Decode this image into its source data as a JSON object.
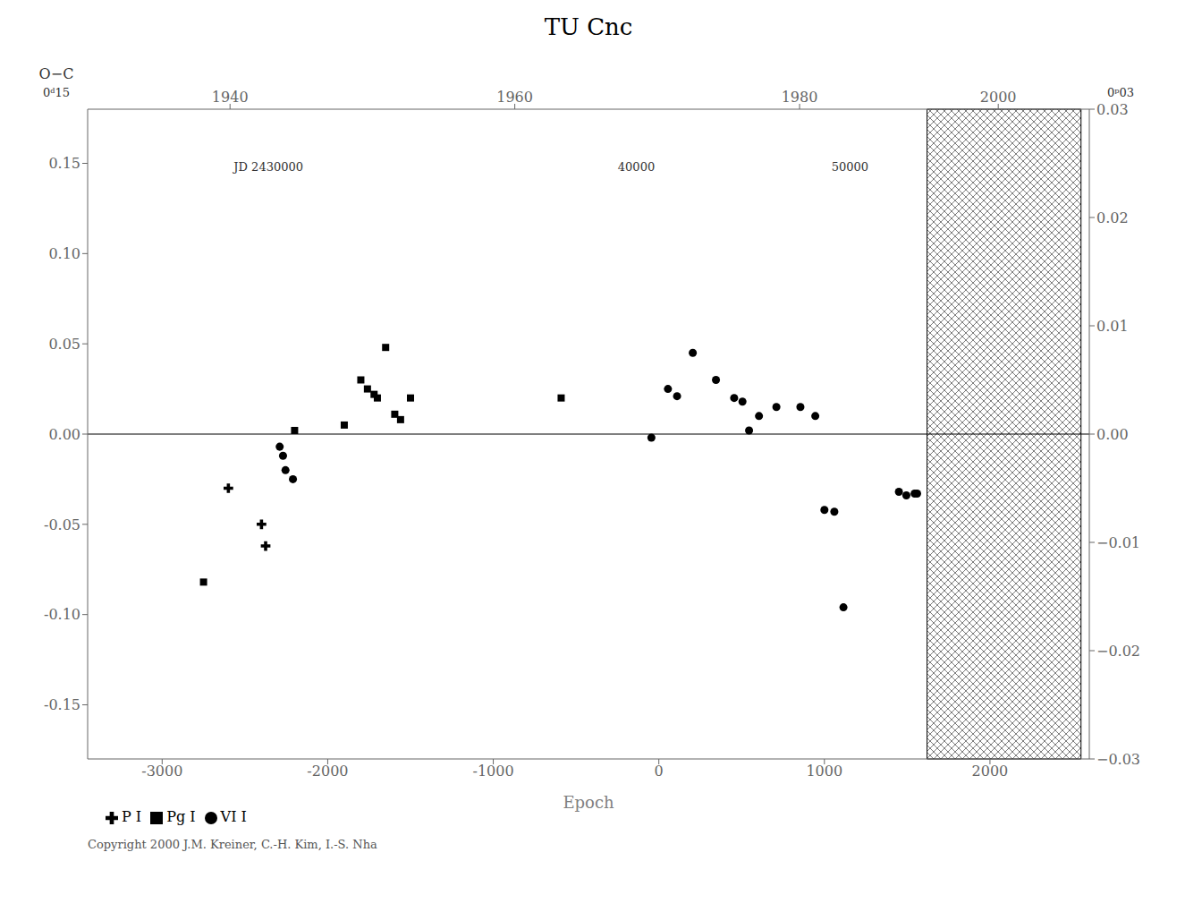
{
  "chart_data": {
    "type": "scatter",
    "title": "TU  Cnc",
    "x_label": "Epoch",
    "y_label": "O−C",
    "y_unit": "0ᵈ15",
    "y2_unit": "0ᵖ03",
    "caption": "Copyright 2000 J.M. Kreiner, C.-H. Kim, I.-S. Nha",
    "xlim": [
      -3450,
      2600
    ],
    "xticks": [
      -3000,
      -2000,
      -1000,
      0,
      1000,
      2000
    ],
    "x2lim": [
      -3450,
      2600
    ],
    "x2ticks": [
      {
        "value": -2590,
        "label": "1940"
      },
      {
        "value": -870,
        "label": "1960"
      },
      {
        "value": 850,
        "label": "1980"
      },
      {
        "value": 2050,
        "label": "2000"
      }
    ],
    "ylim": [
      -0.18,
      0.18
    ],
    "yticks": [
      -0.15,
      {
        "value": -0.1,
        "label": "-0.10"
      },
      -0.05,
      {
        "value": 0,
        "label": "0.00"
      },
      0.05,
      {
        "value": 0.1,
        "label": "0.10"
      },
      0.15
    ],
    "y2lim": [
      -0.03,
      0.03
    ],
    "y2ticks": [
      {
        "value": -0.03,
        "label": "−0.03"
      },
      {
        "value": -0.02,
        "label": "−0.02"
      },
      {
        "value": -0.01,
        "label": "−0.01"
      },
      {
        "value": 0,
        "label": "0.00"
      },
      0.01,
      0.02,
      0.03
    ],
    "grid": false,
    "legend": "lower left",
    "shaded_region": {
      "x": [
        1620,
        2550
      ],
      "y": [
        -0.18,
        0.18
      ]
    },
    "hlines": [
      0.0
    ],
    "annotations": [
      {
        "text": "JD 2430000",
        "x": -2600,
        "y": 0.148
      },
      {
        "text": "40000",
        "x": -280,
        "y": 0.148
      },
      {
        "text": "50000",
        "x": 1010,
        "y": 0.148
      }
    ],
    "series": [
      {
        "name": "Pg I",
        "marker": "square",
        "color": "#000000",
        "x": [
          -2750,
          -2200,
          -1900,
          -1800,
          -1760,
          -1720,
          -1700,
          -1650,
          -1595,
          -1560,
          -1500,
          -590
        ],
        "values": [
          -0.082,
          0.002,
          0.005,
          0.03,
          0.025,
          0.022,
          0.02,
          0.048,
          0.011,
          0.008,
          0.02,
          0.02
        ]
      },
      {
        "name": "VI I",
        "marker": "circle",
        "color": "#000000",
        "x": [
          -2290,
          -2270,
          -2255,
          -2210,
          -45,
          55,
          110,
          205,
          345,
          455,
          505,
          545,
          605,
          710,
          855,
          945,
          1000,
          1060,
          1115,
          1450,
          1495,
          1545,
          1560
        ],
        "values": [
          -0.007,
          -0.012,
          -0.02,
          -0.025,
          -0.002,
          0.025,
          0.021,
          0.045,
          0.03,
          0.02,
          0.018,
          0.002,
          0.01,
          0.015,
          0.015,
          0.01,
          -0.042,
          -0.043,
          -0.096,
          -0.032,
          -0.034,
          -0.033,
          -0.033
        ]
      },
      {
        "name": "P I",
        "marker": "plus",
        "color": "#000000",
        "x": [
          -2600,
          -2400,
          -2375
        ],
        "values": [
          -0.03,
          -0.05,
          -0.062
        ]
      }
    ]
  }
}
